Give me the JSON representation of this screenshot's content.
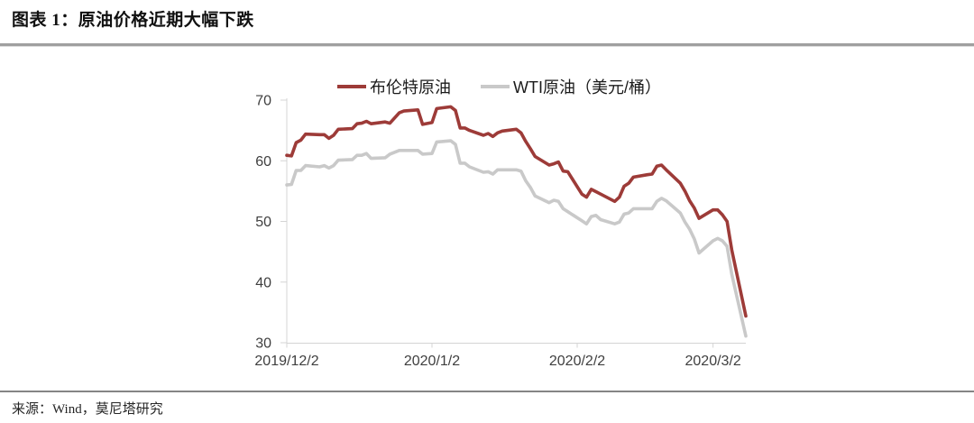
{
  "header": {
    "title": "图表 1：原油价格近期大幅下跌"
  },
  "footer": {
    "source": "来源：Wind，莫尼塔研究"
  },
  "colors": {
    "brent": "#9d3b38",
    "wti": "#c9c9c9",
    "axis": "#d4d4d4",
    "tick_text": "#3f3f3f"
  },
  "chart_data": {
    "type": "line",
    "title": "原油价格近期大幅下跌",
    "ylabel": "美元/桶",
    "ylim": [
      30,
      70
    ],
    "yticks": [
      30,
      40,
      50,
      60,
      70
    ],
    "xticks": [
      "2019/12/2",
      "2020/1/2",
      "2020/2/2",
      "2020/3/2"
    ],
    "grid": false,
    "legend_position": "top",
    "x": [
      "2019/12/2",
      "2019/12/3",
      "2019/12/4",
      "2019/12/5",
      "2019/12/6",
      "2019/12/9",
      "2019/12/10",
      "2019/12/11",
      "2019/12/12",
      "2019/12/13",
      "2019/12/16",
      "2019/12/17",
      "2019/12/18",
      "2019/12/19",
      "2019/12/20",
      "2019/12/23",
      "2019/12/24",
      "2019/12/26",
      "2019/12/27",
      "2019/12/30",
      "2019/12/31",
      "2020/1/2",
      "2020/1/3",
      "2020/1/6",
      "2020/1/7",
      "2020/1/8",
      "2020/1/9",
      "2020/1/10",
      "2020/1/13",
      "2020/1/14",
      "2020/1/15",
      "2020/1/16",
      "2020/1/17",
      "2020/1/20",
      "2020/1/21",
      "2020/1/22",
      "2020/1/23",
      "2020/1/24",
      "2020/1/27",
      "2020/1/28",
      "2020/1/29",
      "2020/1/30",
      "2020/1/31",
      "2020/2/3",
      "2020/2/4",
      "2020/2/5",
      "2020/2/6",
      "2020/2/7",
      "2020/2/10",
      "2020/2/11",
      "2020/2/12",
      "2020/2/13",
      "2020/2/14",
      "2020/2/17",
      "2020/2/18",
      "2020/2/19",
      "2020/2/20",
      "2020/2/21",
      "2020/2/24",
      "2020/2/25",
      "2020/2/26",
      "2020/2/27",
      "2020/2/28",
      "2020/3/2",
      "2020/3/3",
      "2020/3/4",
      "2020/3/5",
      "2020/3/6",
      "2020/3/9"
    ],
    "series": [
      {
        "name": "布伦特原油",
        "color": "#9d3b38",
        "values": [
          60.9,
          60.8,
          63.0,
          63.4,
          64.4,
          64.3,
          64.3,
          63.7,
          64.2,
          65.2,
          65.3,
          66.1,
          66.2,
          66.5,
          66.1,
          66.4,
          66.2,
          67.9,
          68.2,
          68.4,
          66.0,
          66.3,
          68.6,
          68.9,
          68.3,
          65.4,
          65.4,
          65.0,
          64.2,
          64.5,
          64.0,
          64.6,
          64.9,
          65.2,
          64.6,
          63.2,
          62.0,
          60.7,
          59.3,
          59.5,
          59.8,
          58.3,
          58.2,
          54.5,
          54.0,
          55.3,
          54.9,
          54.5,
          53.3,
          54.0,
          55.8,
          56.3,
          57.3,
          57.7,
          57.8,
          59.1,
          59.3,
          58.5,
          56.3,
          55.0,
          53.4,
          52.2,
          50.5,
          51.9,
          51.9,
          51.1,
          50.0,
          45.3,
          34.4
        ]
      },
      {
        "name": "WTI原油（美元/桶）",
        "color": "#c9c9c9",
        "values": [
          56.0,
          56.1,
          58.4,
          58.4,
          59.2,
          59.0,
          59.2,
          58.8,
          59.2,
          60.1,
          60.2,
          60.9,
          60.9,
          61.2,
          60.4,
          60.5,
          61.1,
          61.7,
          61.7,
          61.7,
          61.1,
          61.2,
          63.1,
          63.3,
          62.7,
          59.6,
          59.6,
          59.0,
          58.1,
          58.2,
          57.8,
          58.5,
          58.5,
          58.5,
          58.3,
          56.7,
          55.6,
          54.2,
          53.1,
          53.5,
          53.3,
          52.1,
          51.6,
          50.1,
          49.6,
          50.8,
          51.0,
          50.3,
          49.6,
          49.9,
          51.2,
          51.4,
          52.1,
          52.1,
          52.1,
          53.3,
          53.8,
          53.4,
          51.4,
          49.9,
          48.7,
          47.1,
          44.8,
          46.8,
          47.2,
          46.8,
          45.9,
          41.3,
          31.1
        ]
      }
    ]
  }
}
